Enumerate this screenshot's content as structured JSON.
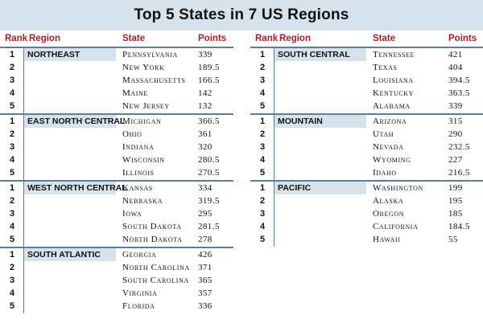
{
  "title": "Top 5 States in 7 US Regions",
  "headers": {
    "rank": "Rank",
    "region": "Region",
    "state": "State",
    "points": "Points"
  },
  "left_regions": [
    {
      "region": "NORTHEAST",
      "rows": [
        {
          "rank": "1",
          "state": "Pennsylvania",
          "points": "339"
        },
        {
          "rank": "2",
          "state": "New York",
          "points": "189.5"
        },
        {
          "rank": "3",
          "state": "Massachusetts",
          "points": "166.5"
        },
        {
          "rank": "4",
          "state": "Maine",
          "points": "142"
        },
        {
          "rank": "5",
          "state": "New Jersey",
          "points": "132"
        }
      ]
    },
    {
      "region": "EAST NORTH CENTRAL",
      "rows": [
        {
          "rank": "1",
          "state": "Michigan",
          "points": "366.5"
        },
        {
          "rank": "2",
          "state": "Ohio",
          "points": "361"
        },
        {
          "rank": "3",
          "state": "Indiana",
          "points": "320"
        },
        {
          "rank": "4",
          "state": "Wisconsin",
          "points": "280.5"
        },
        {
          "rank": "5",
          "state": "Illinois",
          "points": "270.5"
        }
      ]
    },
    {
      "region": "WEST NORTH CENTRAL",
      "rows": [
        {
          "rank": "1",
          "state": "Kansas",
          "points": "334"
        },
        {
          "rank": "2",
          "state": "Nebraska",
          "points": "319.5"
        },
        {
          "rank": "3",
          "state": "Iowa",
          "points": "295"
        },
        {
          "rank": "4",
          "state": "South Dakota",
          "points": "281.5"
        },
        {
          "rank": "5",
          "state": "North Dakota",
          "points": "278"
        }
      ]
    },
    {
      "region": "SOUTH ATLANTIC",
      "rows": [
        {
          "rank": "1",
          "state": "Georgia",
          "points": "426"
        },
        {
          "rank": "2",
          "state": "North Carolina",
          "points": "371"
        },
        {
          "rank": "3",
          "state": "South Carolina",
          "points": "365"
        },
        {
          "rank": "4",
          "state": "Virginia",
          "points": "357"
        },
        {
          "rank": "5",
          "state": "Florida",
          "points": "336"
        }
      ]
    }
  ],
  "right_regions": [
    {
      "region": "SOUTH CENTRAL",
      "rows": [
        {
          "rank": "1",
          "state": "Tennessee",
          "points": "421"
        },
        {
          "rank": "2",
          "state": "Texas",
          "points": "404"
        },
        {
          "rank": "3",
          "state": "Louisiana",
          "points": "394.5"
        },
        {
          "rank": "4",
          "state": "Kentucky",
          "points": "363.5"
        },
        {
          "rank": "5",
          "state": "Alabama",
          "points": "339"
        }
      ]
    },
    {
      "region": "MOUNTAIN",
      "rows": [
        {
          "rank": "1",
          "state": "Arizona",
          "points": "315"
        },
        {
          "rank": "2",
          "state": "Utah",
          "points": "290"
        },
        {
          "rank": "3",
          "state": "Nevada",
          "points": "232.5"
        },
        {
          "rank": "4",
          "state": "Wyoming",
          "points": "227"
        },
        {
          "rank": "5",
          "state": "Idaho",
          "points": "216.5"
        }
      ]
    },
    {
      "region": "PACIFIC",
      "rows": [
        {
          "rank": "1",
          "state": "Washington",
          "points": "199"
        },
        {
          "rank": "2",
          "state": "Alaska",
          "points": "195"
        },
        {
          "rank": "3",
          "state": "Oregon",
          "points": "185"
        },
        {
          "rank": "4",
          "state": "California",
          "points": "184.5"
        },
        {
          "rank": "5",
          "state": "Hawaii",
          "points": "55"
        }
      ]
    }
  ],
  "colors": {
    "header_text": "#b2182b",
    "band": "#d6e3ec",
    "rule": "#5a7f98"
  }
}
